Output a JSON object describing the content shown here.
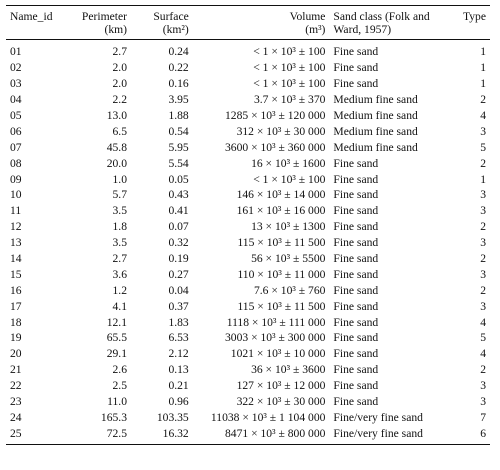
{
  "table": {
    "headers": {
      "id": "Name_id",
      "perimeter_l1": "Perimeter",
      "perimeter_l2": "(km)",
      "surface_l1": "Surface",
      "surface_l2": "(km²)",
      "volume_l1": "Volume",
      "volume_l2": "(m³)",
      "sand_class": "Sand class (Folk and Ward, 1957)",
      "type": "Type"
    },
    "rows": [
      {
        "id": "01",
        "perimeter": "2.7",
        "surface": "0.24",
        "volume": "< 1 × 10³ ± 100",
        "sand_class": "Fine sand",
        "type": "1"
      },
      {
        "id": "02",
        "perimeter": "2.0",
        "surface": "0.22",
        "volume": "< 1 × 10³ ± 100",
        "sand_class": "Fine sand",
        "type": "1"
      },
      {
        "id": "03",
        "perimeter": "2.0",
        "surface": "0.16",
        "volume": "< 1 × 10³ ± 100",
        "sand_class": "Fine sand",
        "type": "1"
      },
      {
        "id": "04",
        "perimeter": "2.2",
        "surface": "3.95",
        "volume": "3.7 × 10³ ± 370",
        "sand_class": "Medium fine sand",
        "type": "2"
      },
      {
        "id": "05",
        "perimeter": "13.0",
        "surface": "1.88",
        "volume": "1285 × 10³ ± 120 000",
        "sand_class": "Medium fine sand",
        "type": "4"
      },
      {
        "id": "06",
        "perimeter": "6.5",
        "surface": "0.54",
        "volume": "312 × 10³ ± 30 000",
        "sand_class": "Medium fine sand",
        "type": "3"
      },
      {
        "id": "07",
        "perimeter": "45.8",
        "surface": "5.95",
        "volume": "3600 × 10³ ± 360 000",
        "sand_class": "Medium fine sand",
        "type": "5"
      },
      {
        "id": "08",
        "perimeter": "20.0",
        "surface": "5.54",
        "volume": "16 × 10³ ± 1600",
        "sand_class": "Fine sand",
        "type": "2"
      },
      {
        "id": "09",
        "perimeter": "1.0",
        "surface": "0.05",
        "volume": "< 1 × 10³ ± 100",
        "sand_class": "Fine sand",
        "type": "1"
      },
      {
        "id": "10",
        "perimeter": "5.7",
        "surface": "0.43",
        "volume": "146 × 10³ ± 14 000",
        "sand_class": "Fine sand",
        "type": "3"
      },
      {
        "id": "11",
        "perimeter": "3.5",
        "surface": "0.41",
        "volume": "161 × 10³ ± 16 000",
        "sand_class": "Fine sand",
        "type": "3"
      },
      {
        "id": "12",
        "perimeter": "1.8",
        "surface": "0.07",
        "volume": "13 × 10³ ± 1300",
        "sand_class": "Fine sand",
        "type": "2"
      },
      {
        "id": "13",
        "perimeter": "3.5",
        "surface": "0.32",
        "volume": "115 × 10³ ± 11 500",
        "sand_class": "Fine sand",
        "type": "3"
      },
      {
        "id": "14",
        "perimeter": "2.7",
        "surface": "0.19",
        "volume": "56 × 10³ ± 5500",
        "sand_class": "Fine sand",
        "type": "2"
      },
      {
        "id": "15",
        "perimeter": "3.6",
        "surface": "0.27",
        "volume": "110 × 10³ ± 11 000",
        "sand_class": "Fine sand",
        "type": "3"
      },
      {
        "id": "16",
        "perimeter": "1.2",
        "surface": "0.04",
        "volume": "7.6 × 10³ ± 760",
        "sand_class": "Fine sand",
        "type": "2"
      },
      {
        "id": "17",
        "perimeter": "4.1",
        "surface": "0.37",
        "volume": "115 × 10³ ± 11 500",
        "sand_class": "Fine sand",
        "type": "3"
      },
      {
        "id": "18",
        "perimeter": "12.1",
        "surface": "1.83",
        "volume": "1118 × 10³ ± 111 000",
        "sand_class": "Fine sand",
        "type": "4"
      },
      {
        "id": "19",
        "perimeter": "65.5",
        "surface": "6.53",
        "volume": "3003 × 10³ ± 300 000",
        "sand_class": "Fine sand",
        "type": "5"
      },
      {
        "id": "20",
        "perimeter": "29.1",
        "surface": "2.12",
        "volume": "1021 × 10³ ± 10 000",
        "sand_class": "Fine sand",
        "type": "4"
      },
      {
        "id": "21",
        "perimeter": "2.6",
        "surface": "0.13",
        "volume": "36 × 10³ ± 3600",
        "sand_class": "Fine sand",
        "type": "2"
      },
      {
        "id": "22",
        "perimeter": "2.5",
        "surface": "0.21",
        "volume": "127 × 10³ ± 12 000",
        "sand_class": "Fine sand",
        "type": "3"
      },
      {
        "id": "23",
        "perimeter": "11.0",
        "surface": "0.96",
        "volume": "322 × 10³ ± 30 000",
        "sand_class": "Fine sand",
        "type": "3"
      },
      {
        "id": "24",
        "perimeter": "165.3",
        "surface": "103.35",
        "volume": "11038 × 10³ ± 1 104 000",
        "sand_class": "Fine/very fine sand",
        "type": "7"
      },
      {
        "id": "25",
        "perimeter": "72.5",
        "surface": "16.32",
        "volume": "8471 × 10³ ± 800 000",
        "sand_class": "Fine/very fine sand",
        "type": "6"
      }
    ]
  }
}
